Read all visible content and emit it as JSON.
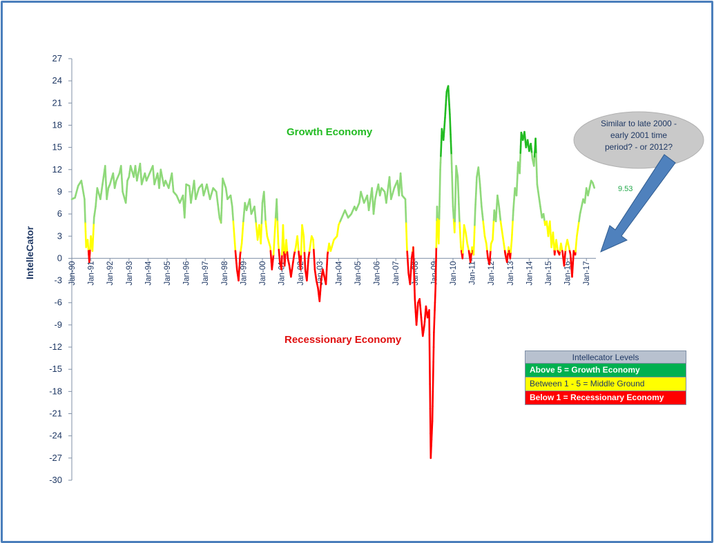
{
  "chart_data": {
    "type": "line",
    "title": "",
    "ylabel": "IntelleCator",
    "xlabel": "",
    "ylim": [
      -30,
      27
    ],
    "yticks": [
      27,
      24,
      21,
      18,
      15,
      12,
      9,
      6,
      3,
      0,
      -3,
      -6,
      -9,
      -12,
      -15,
      -18,
      -21,
      -24,
      -27,
      -30
    ],
    "xrange": [
      "Jan-90",
      "Jun-17"
    ],
    "xticks": [
      "Jan-90",
      "Jan-91",
      "Jan-92",
      "Jan-93",
      "Jan-94",
      "Jan-95",
      "Jan-96",
      "Jan-97",
      "Jan-98",
      "Jan-99",
      "Jan-00",
      "Jan-01",
      "Jan-02",
      "Jan-03",
      "Jan-04",
      "Jan-05",
      "Jan-06",
      "Jan-07",
      "Jan-08",
      "Jan-09",
      "Jan-10",
      "Jan-11",
      "Jan-12",
      "Jan-13",
      "Jan-14",
      "Jan-15",
      "Jan-16",
      "Jan-17"
    ],
    "color_thresholds": {
      "growth_above": 5,
      "recession_below": 1
    },
    "colors": {
      "growth_strong": "#22bb22",
      "growth": "#8fd97a",
      "middle": "#ffff00",
      "recession": "#ff0000",
      "axis": "#1f3864"
    },
    "annotations": {
      "growth": "Growth Economy",
      "recession": "Recessionary Economy",
      "last_value": "9.53"
    },
    "callout_lines": [
      "Similar to  late 2000 -",
      "early 2001 time",
      "period? - or 2012?"
    ],
    "points": [
      [
        "Jan-90",
        8.0
      ],
      [
        "Mar-90",
        8.2
      ],
      [
        "May-90",
        9.8
      ],
      [
        "Jul-90",
        10.5
      ],
      [
        "Sep-90",
        8.0
      ],
      [
        "Oct-90",
        1.5
      ],
      [
        "Nov-90",
        2.5
      ],
      [
        "Dec-90",
        -0.5
      ],
      [
        "Jan-91",
        3.0
      ],
      [
        "Feb-91",
        1.0
      ],
      [
        "Mar-91",
        5.5
      ],
      [
        "Apr-91",
        7.0
      ],
      [
        "May-91",
        9.5
      ],
      [
        "Jul-91",
        8.0
      ],
      [
        "Aug-91",
        9.5
      ],
      [
        "Oct-91",
        12.5
      ],
      [
        "Nov-91",
        8.0
      ],
      [
        "Dec-91",
        9.5
      ],
      [
        "Jan-92",
        10.0
      ],
      [
        "Mar-92",
        11.5
      ],
      [
        "Apr-92",
        9.5
      ],
      [
        "May-92",
        10.5
      ],
      [
        "Jul-92",
        11.5
      ],
      [
        "Aug-92",
        12.5
      ],
      [
        "Sep-92",
        9.0
      ],
      [
        "Nov-92",
        7.5
      ],
      [
        "Dec-92",
        10.5
      ],
      [
        "Jan-93",
        11.0
      ],
      [
        "Feb-93",
        12.5
      ],
      [
        "Apr-93",
        11.0
      ],
      [
        "May-93",
        12.5
      ],
      [
        "Jun-93",
        10.5
      ],
      [
        "Aug-93",
        12.8
      ],
      [
        "Sep-93",
        10.0
      ],
      [
        "Nov-93",
        11.5
      ],
      [
        "Dec-93",
        10.5
      ],
      [
        "Feb-94",
        11.5
      ],
      [
        "Apr-94",
        12.5
      ],
      [
        "May-94",
        10.0
      ],
      [
        "Jul-94",
        11.5
      ],
      [
        "Aug-94",
        9.5
      ],
      [
        "Sep-94",
        12.0
      ],
      [
        "Nov-94",
        9.8
      ],
      [
        "Dec-94",
        10.5
      ],
      [
        "Feb-95",
        9.5
      ],
      [
        "Apr-95",
        11.5
      ],
      [
        "May-95",
        9.0
      ],
      [
        "Jul-95",
        8.5
      ],
      [
        "Sep-95",
        7.5
      ],
      [
        "Nov-95",
        8.5
      ],
      [
        "Dec-95",
        5.5
      ],
      [
        "Jan-96",
        10.0
      ],
      [
        "Mar-96",
        9.8
      ],
      [
        "Apr-96",
        7.5
      ],
      [
        "Jun-96",
        10.5
      ],
      [
        "Jul-96",
        8.0
      ],
      [
        "Sep-96",
        9.5
      ],
      [
        "Nov-96",
        10.0
      ],
      [
        "Dec-96",
        8.5
      ],
      [
        "Feb-97",
        10.0
      ],
      [
        "Apr-97",
        8.0
      ],
      [
        "Jun-97",
        9.5
      ],
      [
        "Aug-97",
        9.0
      ],
      [
        "Oct-97",
        5.5
      ],
      [
        "Nov-97",
        4.8
      ],
      [
        "Dec-97",
        10.8
      ],
      [
        "Feb-98",
        9.5
      ],
      [
        "Mar-98",
        8.0
      ],
      [
        "May-98",
        8.5
      ],
      [
        "Jun-98",
        7.0
      ],
      [
        "Aug-98",
        1.0
      ],
      [
        "Sep-98",
        -1.5
      ],
      [
        "Oct-98",
        -3.0
      ],
      [
        "Nov-98",
        0.5
      ],
      [
        "Dec-98",
        2.0
      ],
      [
        "Jan-99",
        5.0
      ],
      [
        "Feb-99",
        7.5
      ],
      [
        "Mar-99",
        6.5
      ],
      [
        "May-99",
        8.0
      ],
      [
        "Jun-99",
        6.0
      ],
      [
        "Aug-99",
        7.0
      ],
      [
        "Oct-99",
        2.5
      ],
      [
        "Nov-99",
        4.5
      ],
      [
        "Dec-99",
        2.0
      ],
      [
        "Jan-00",
        7.5
      ],
      [
        "Feb-00",
        9.0
      ],
      [
        "Mar-00",
        5.0
      ],
      [
        "Apr-00",
        3.0
      ],
      [
        "Jun-00",
        1.5
      ],
      [
        "Jul-00",
        -1.5
      ],
      [
        "Aug-00",
        0.5
      ],
      [
        "Oct-00",
        8.0
      ],
      [
        "Nov-00",
        2.0
      ],
      [
        "Dec-00",
        -0.5
      ],
      [
        "Jan-01",
        -1.5
      ],
      [
        "Feb-01",
        4.5
      ],
      [
        "Mar-01",
        -1.0
      ],
      [
        "Apr-01",
        2.5
      ],
      [
        "May-01",
        0.0
      ],
      [
        "Jun-01",
        -1.0
      ],
      [
        "Jul-01",
        -2.5
      ],
      [
        "Sep-01",
        0.5
      ],
      [
        "Oct-01",
        1.5
      ],
      [
        "Nov-01",
        3.0
      ],
      [
        "Dec-01",
        0.5
      ],
      [
        "Jan-02",
        -1.5
      ],
      [
        "Feb-02",
        4.5
      ],
      [
        "Mar-02",
        3.0
      ],
      [
        "Apr-02",
        -1.5
      ],
      [
        "May-02",
        -3.0
      ],
      [
        "Jun-02",
        0.0
      ],
      [
        "Jul-02",
        1.5
      ],
      [
        "Aug-02",
        3.0
      ],
      [
        "Sep-02",
        2.5
      ],
      [
        "Oct-02",
        -1.5
      ],
      [
        "Nov-02",
        -3.0
      ],
      [
        "Dec-02",
        -4.0
      ],
      [
        "Jan-03",
        -5.8
      ],
      [
        "Feb-03",
        -3.0
      ],
      [
        "Mar-03",
        -1.5
      ],
      [
        "Apr-03",
        -2.5
      ],
      [
        "May-03",
        -3.5
      ],
      [
        "Jun-03",
        0.5
      ],
      [
        "Jul-03",
        2.0
      ],
      [
        "Aug-03",
        1.0
      ],
      [
        "Oct-03",
        2.5
      ],
      [
        "Dec-03",
        3.0
      ],
      [
        "Jan-04",
        4.5
      ],
      [
        "Mar-04",
        5.5
      ],
      [
        "May-04",
        6.5
      ],
      [
        "Jul-04",
        5.5
      ],
      [
        "Sep-04",
        6.0
      ],
      [
        "Nov-04",
        7.0
      ],
      [
        "Dec-04",
        6.5
      ],
      [
        "Feb-05",
        7.5
      ],
      [
        "Mar-05",
        9.0
      ],
      [
        "May-05",
        7.5
      ],
      [
        "Jul-05",
        8.5
      ],
      [
        "Aug-05",
        6.5
      ],
      [
        "Oct-05",
        9.5
      ],
      [
        "Nov-05",
        6.0
      ],
      [
        "Dec-05",
        8.0
      ],
      [
        "Feb-06",
        10.0
      ],
      [
        "Mar-06",
        8.5
      ],
      [
        "Apr-06",
        9.5
      ],
      [
        "Jun-06",
        9.0
      ],
      [
        "Jul-06",
        7.5
      ],
      [
        "Sep-06",
        11.0
      ],
      [
        "Oct-06",
        8.0
      ],
      [
        "Dec-06",
        9.5
      ],
      [
        "Feb-07",
        10.5
      ],
      [
        "Mar-07",
        8.5
      ],
      [
        "Apr-07",
        11.5
      ],
      [
        "May-07",
        8.5
      ],
      [
        "Jul-07",
        8.0
      ],
      [
        "Aug-07",
        1.5
      ],
      [
        "Sep-07",
        -2.0
      ],
      [
        "Oct-07",
        -3.5
      ],
      [
        "Nov-07",
        0.0
      ],
      [
        "Dec-07",
        1.5
      ],
      [
        "Jan-08",
        -5.5
      ],
      [
        "Feb-08",
        -9.0
      ],
      [
        "Mar-08",
        -6.0
      ],
      [
        "Apr-08",
        -5.5
      ],
      [
        "May-08",
        -8.0
      ],
      [
        "Jun-08",
        -10.5
      ],
      [
        "Jul-08",
        -9.0
      ],
      [
        "Aug-08",
        -6.5
      ],
      [
        "Sep-08",
        -8.0
      ],
      [
        "Oct-08",
        -7.0
      ],
      [
        "Nov-08",
        -27.0
      ],
      [
        "Dec-08",
        -22.0
      ],
      [
        "Jan-09",
        -10.0
      ],
      [
        "Feb-09",
        -4.0
      ],
      [
        "Mar-09",
        7.0
      ],
      [
        "Apr-09",
        2.0
      ],
      [
        "May-09",
        12.0
      ],
      [
        "Jun-09",
        17.5
      ],
      [
        "Jul-09",
        16.0
      ],
      [
        "Aug-09",
        19.0
      ],
      [
        "Sep-09",
        22.5
      ],
      [
        "Oct-09",
        23.3
      ],
      [
        "Nov-09",
        19.5
      ],
      [
        "Dec-09",
        14.0
      ],
      [
        "Jan-10",
        7.0
      ],
      [
        "Feb-10",
        3.5
      ],
      [
        "Mar-10",
        12.5
      ],
      [
        "Apr-10",
        11.0
      ],
      [
        "May-10",
        5.5
      ],
      [
        "Jun-10",
        1.5
      ],
      [
        "Jul-10",
        0.0
      ],
      [
        "Aug-10",
        4.5
      ],
      [
        "Sep-10",
        3.5
      ],
      [
        "Oct-10",
        2.0
      ],
      [
        "Nov-10",
        1.0
      ],
      [
        "Dec-10",
        -0.5
      ],
      [
        "Jan-11",
        1.5
      ],
      [
        "Feb-11",
        0.5
      ],
      [
        "Mar-11",
        6.5
      ],
      [
        "Apr-11",
        11.0
      ],
      [
        "May-11",
        12.3
      ],
      [
        "Jun-11",
        10.0
      ],
      [
        "Jul-11",
        7.0
      ],
      [
        "Aug-11",
        5.0
      ],
      [
        "Sep-11",
        3.0
      ],
      [
        "Oct-11",
        2.0
      ],
      [
        "Nov-11",
        0.0
      ],
      [
        "Dec-11",
        -0.8
      ],
      [
        "Jan-12",
        2.0
      ],
      [
        "Feb-12",
        2.5
      ],
      [
        "Mar-12",
        6.5
      ],
      [
        "Apr-12",
        5.0
      ],
      [
        "May-12",
        8.5
      ],
      [
        "Jun-12",
        7.0
      ],
      [
        "Jul-12",
        5.0
      ],
      [
        "Aug-12",
        3.5
      ],
      [
        "Sep-12",
        2.0
      ],
      [
        "Oct-12",
        0.5
      ],
      [
        "Nov-12",
        -0.5
      ],
      [
        "Dec-12",
        1.5
      ],
      [
        "Jan-13",
        0.0
      ],
      [
        "Feb-13",
        2.5
      ],
      [
        "Mar-13",
        6.5
      ],
      [
        "Apr-13",
        9.5
      ],
      [
        "May-13",
        8.5
      ],
      [
        "Jun-13",
        13.0
      ],
      [
        "Jul-13",
        11.5
      ],
      [
        "Aug-13",
        17.0
      ],
      [
        "Sep-13",
        16.0
      ],
      [
        "Oct-13",
        17.1
      ],
      [
        "Nov-13",
        15.0
      ],
      [
        "Dec-13",
        16.0
      ],
      [
        "Jan-14",
        14.5
      ],
      [
        "Feb-14",
        15.5
      ],
      [
        "Mar-14",
        13.5
      ],
      [
        "Apr-14",
        12.5
      ],
      [
        "May-14",
        16.2
      ],
      [
        "Jun-14",
        10.0
      ],
      [
        "Jul-14",
        8.5
      ],
      [
        "Aug-14",
        7.0
      ],
      [
        "Sep-14",
        5.5
      ],
      [
        "Oct-14",
        6.0
      ],
      [
        "Nov-14",
        4.5
      ],
      [
        "Dec-14",
        5.0
      ],
      [
        "Jan-15",
        3.0
      ],
      [
        "Feb-15",
        5.0
      ],
      [
        "Mar-15",
        1.5
      ],
      [
        "Apr-15",
        3.5
      ],
      [
        "May-15",
        0.5
      ],
      [
        "Jun-15",
        2.5
      ],
      [
        "Jul-15",
        1.0
      ],
      [
        "Aug-15",
        0.5
      ],
      [
        "Sep-15",
        2.0
      ],
      [
        "Oct-15",
        0.8
      ],
      [
        "Nov-15",
        -1.0
      ],
      [
        "Dec-15",
        1.5
      ],
      [
        "Jan-16",
        2.5
      ],
      [
        "Feb-16",
        1.5
      ],
      [
        "Mar-16",
        0.5
      ],
      [
        "Apr-16",
        -2.5
      ],
      [
        "May-16",
        1.0
      ],
      [
        "Jun-16",
        0.5
      ],
      [
        "Jul-16",
        3.0
      ],
      [
        "Aug-16",
        4.5
      ],
      [
        "Sep-16",
        6.0
      ],
      [
        "Oct-16",
        7.0
      ],
      [
        "Nov-16",
        8.0
      ],
      [
        "Dec-16",
        7.5
      ],
      [
        "Jan-17",
        9.5
      ],
      [
        "Feb-17",
        8.5
      ],
      [
        "Mar-17",
        9.5
      ],
      [
        "Apr-17",
        10.5
      ],
      [
        "May-17",
        10.2
      ],
      [
        "Jun-17",
        9.53
      ]
    ]
  },
  "legend": {
    "title": "Intellecator Levels",
    "rows": [
      {
        "text": "Above 5  =  Growth Economy",
        "class": "lg-green"
      },
      {
        "text": "Between 1 - 5 = Middle Ground",
        "class": "lg-yellow"
      },
      {
        "text": "Below 1  =  Recessionary Economy",
        "class": "lg-red"
      }
    ]
  }
}
